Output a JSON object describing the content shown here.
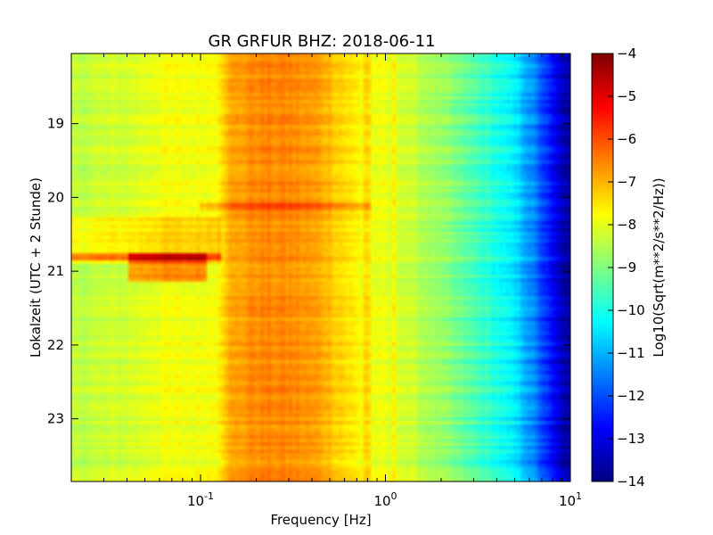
{
  "chart_data": {
    "type": "heatmap",
    "title": "GR GRFUR BHZ: 2018-06-11",
    "xlabel": "Frequency [Hz]",
    "ylabel": "Lokalzeit (UTC + 2 Stunde)",
    "x_scale": "log",
    "xlim": [
      0.02,
      10
    ],
    "x_ticks": [
      {
        "value": 0.1,
        "base": "10",
        "exp": "-1"
      },
      {
        "value": 1,
        "base": "10",
        "exp": "0"
      },
      {
        "value": 10,
        "base": "10",
        "exp": "1"
      }
    ],
    "ylim": [
      18.05,
      23.85
    ],
    "y_inverted": true,
    "y_ticks": [
      {
        "value": 19,
        "label": "19"
      },
      {
        "value": 20,
        "label": "20"
      },
      {
        "value": 21,
        "label": "21"
      },
      {
        "value": 22,
        "label": "22"
      },
      {
        "value": 23,
        "label": "23"
      }
    ],
    "colorbar": {
      "label": "Log10(Sqrt(m**2/s**2/Hz))",
      "colormap": "jet",
      "range": [
        -14,
        -4
      ],
      "ticks": [
        {
          "value": -4,
          "label": "−4"
        },
        {
          "value": -5,
          "label": "−5"
        },
        {
          "value": -6,
          "label": "−6"
        },
        {
          "value": -7,
          "label": "−7"
        },
        {
          "value": -8,
          "label": "−8"
        },
        {
          "value": -9,
          "label": "−9"
        },
        {
          "value": -10,
          "label": "−10"
        },
        {
          "value": -11,
          "label": "−11"
        },
        {
          "value": -12,
          "label": "−12"
        },
        {
          "value": -13,
          "label": "−13"
        },
        {
          "value": -14,
          "label": "−14"
        }
      ]
    },
    "background_spectrum": {
      "freq_hz": [
        0.02,
        0.04,
        0.06,
        0.09,
        0.12,
        0.14,
        0.2,
        0.3,
        0.45,
        0.6,
        0.8,
        1.2,
        2,
        3,
        4,
        5,
        6,
        7,
        8,
        10
      ],
      "value": [
        -8.4,
        -8.2,
        -7.9,
        -7.9,
        -7.8,
        -7.0,
        -6.6,
        -6.6,
        -6.9,
        -7.4,
        -7.9,
        -8.1,
        -8.8,
        -9.5,
        -10.0,
        -10.5,
        -11.2,
        -12.0,
        -12.8,
        -13.9
      ]
    },
    "events": [
      {
        "time": [
          20.28,
          20.88
        ],
        "freq_hz": [
          0.02,
          0.13
        ],
        "delta": 0.6
      },
      {
        "time": [
          20.75,
          20.83
        ],
        "freq_hz": [
          0.02,
          0.13
        ],
        "delta": 1.2
      },
      {
        "time": [
          20.75,
          21.15
        ],
        "freq_hz": [
          0.04,
          0.11
        ],
        "delta": 1.4
      },
      {
        "time": [
          20.1,
          20.18
        ],
        "freq_hz": [
          0.1,
          0.85
        ],
        "delta": 0.7
      }
    ],
    "lines": [
      {
        "freq_hz": 0.8,
        "delta": 0.5
      },
      {
        "freq_hz": 1.1,
        "delta": 0.3
      }
    ]
  }
}
